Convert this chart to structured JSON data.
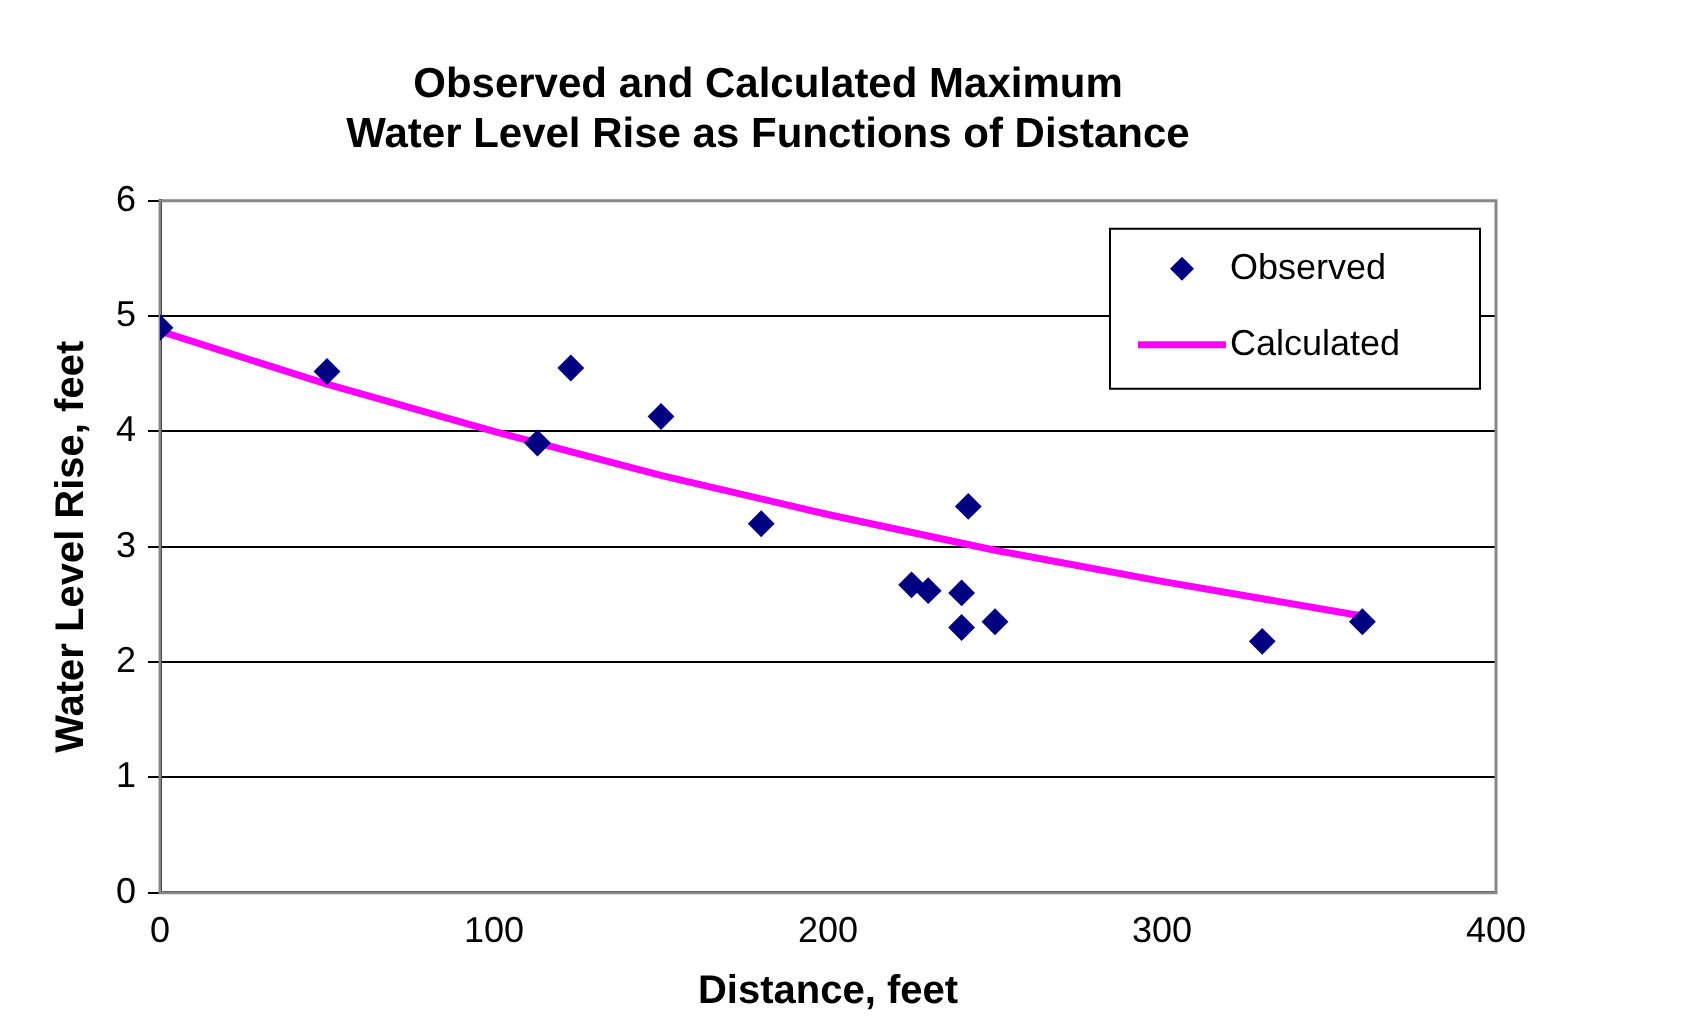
{
  "chart_data": {
    "type": "scatter",
    "title": [
      "Observed and Calculated Maximum",
      "Water Level Rise as Functions of Distance"
    ],
    "xlabel": "Distance, feet",
    "ylabel": "Water Level Rise, feet",
    "xlim": [
      0,
      400
    ],
    "xticks": [
      0,
      100,
      200,
      300,
      400
    ],
    "ylim": [
      0,
      6
    ],
    "yticks": [
      0,
      1,
      2,
      3,
      4,
      5,
      6
    ],
    "grid": "y",
    "legend": "top right",
    "series": [
      {
        "name": "Observed",
        "color": "#000080",
        "marker": "diamond",
        "x": [
          0,
          50,
          113,
          123,
          150,
          180,
          225,
          230,
          240,
          240,
          242,
          250,
          330,
          360
        ],
        "values": [
          4.9,
          4.52,
          3.9,
          4.55,
          4.13,
          3.2,
          2.67,
          2.62,
          2.6,
          2.3,
          3.35,
          2.35,
          2.18,
          2.35
        ]
      },
      {
        "name": "Calculated",
        "type": "line",
        "color": "#ff00ff",
        "marker": "none",
        "line_style": "solid",
        "x": [
          0,
          50,
          100,
          150,
          200,
          250,
          300,
          360
        ],
        "values": [
          4.87,
          4.41,
          4.0,
          3.62,
          3.28,
          2.97,
          2.7,
          2.4
        ]
      }
    ]
  }
}
